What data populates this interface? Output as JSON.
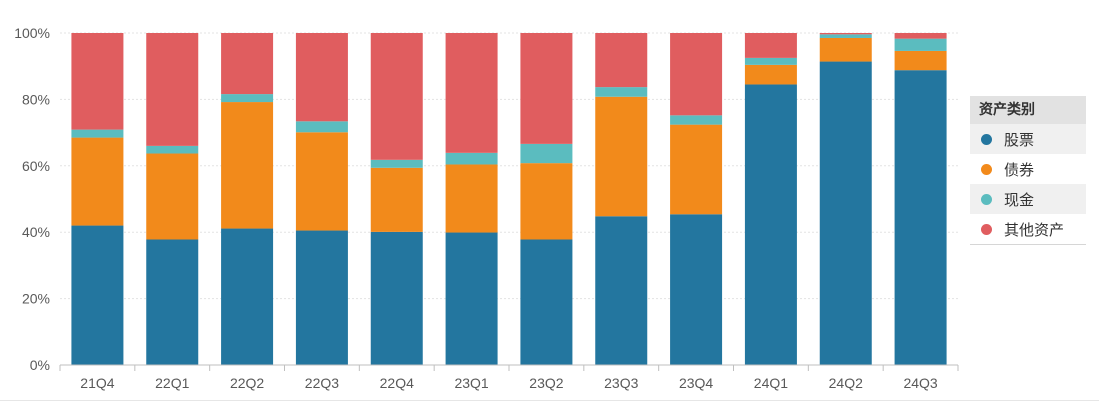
{
  "chart_data": {
    "type": "bar",
    "stacked": true,
    "percent": true,
    "categories": [
      "21Q4",
      "22Q1",
      "22Q2",
      "22Q3",
      "22Q4",
      "23Q1",
      "23Q2",
      "23Q3",
      "23Q4",
      "24Q1",
      "24Q2",
      "24Q3"
    ],
    "series": [
      {
        "name": "股票",
        "color": "#23769f",
        "values": [
          42.0,
          37.8,
          41.1,
          40.5,
          40.1,
          39.9,
          37.8,
          44.8,
          45.4,
          84.5,
          91.4,
          88.8
        ]
      },
      {
        "name": "债券",
        "color": "#f28a1b",
        "values": [
          26.5,
          25.9,
          38.1,
          29.6,
          19.3,
          20.5,
          23.0,
          36.0,
          27.0,
          5.9,
          7.1,
          5.8
        ]
      },
      {
        "name": "现金",
        "color": "#5bbcbf",
        "values": [
          2.4,
          2.3,
          2.4,
          3.3,
          2.4,
          3.5,
          5.8,
          2.9,
          2.8,
          2.1,
          1.1,
          3.7
        ]
      },
      {
        "name": "其他资产",
        "color": "#e05d5f",
        "values": [
          29.1,
          34.0,
          18.4,
          26.6,
          38.2,
          36.1,
          33.4,
          16.3,
          24.8,
          7.5,
          0.4,
          1.7
        ]
      }
    ],
    "y_ticks": [
      "0%",
      "20%",
      "40%",
      "60%",
      "80%",
      "100%"
    ],
    "ylim": [
      0,
      100
    ],
    "grid": true,
    "legend_title": "资产类别",
    "legend_position": "right"
  }
}
